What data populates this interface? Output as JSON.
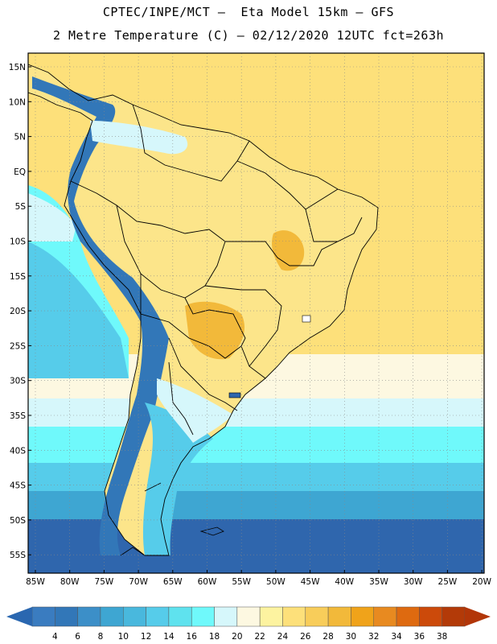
{
  "header": {
    "line1": "CPTEC/INPE/MCT –  Eta Model 15km – GFS",
    "line2": "2 Metre Temperature (C) – 02/12/2020 12UTC fct=263h"
  },
  "latitude_labels": [
    "15N",
    "10N",
    "5N",
    "EQ",
    "5S",
    "10S",
    "15S",
    "20S",
    "25S",
    "30S",
    "35S",
    "40S",
    "45S",
    "50S",
    "55S"
  ],
  "longitude_labels": [
    "85W",
    "80W",
    "75W",
    "70W",
    "65W",
    "60W",
    "55W",
    "50W",
    "45W",
    "40W",
    "35W",
    "30W",
    "25W",
    "20W"
  ],
  "colorbar": {
    "labels": [
      "4",
      "6",
      "8",
      "10",
      "12",
      "14",
      "16",
      "18",
      "20",
      "22",
      "24",
      "26",
      "28",
      "30",
      "32",
      "34",
      "36",
      "38"
    ],
    "colors": [
      "#3a7cc0",
      "#3277b8",
      "#3c8fc8",
      "#3ea6d2",
      "#49b8dd",
      "#56ccea",
      "#5fe2ee",
      "#6ff9fb",
      "#d6f7fb",
      "#fdf8e1",
      "#fdf3a0",
      "#fde07a",
      "#f8cd5a",
      "#f2b93a",
      "#f0a31a",
      "#e88a20",
      "#de6a10",
      "#cc4a0a",
      "#b33a08",
      "#a03206"
    ],
    "left_arrow_color": "#2a67b0",
    "right_arrow_color": "#b23608"
  },
  "map_colors": {
    "ocean_warm": "#fde07a",
    "ocean_hot": "#f8cd5a",
    "land_warm": "#fce58a",
    "land_hot": "#f2b93a",
    "cool_band": "#fdf8e1",
    "pale_cyan": "#d6f7fb",
    "cyan": "#6ff9fb",
    "light_blue": "#56ccea",
    "mid_blue": "#3ea6d2",
    "deep_blue": "#3c8fc8",
    "deepest_blue": "#2f66ad",
    "andes": "#3277b8"
  }
}
